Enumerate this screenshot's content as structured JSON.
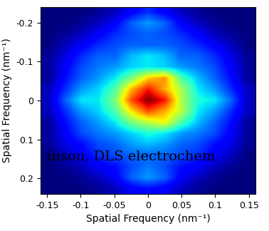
{
  "chart_data": {
    "type": "heatmap",
    "xlabel": "Spatial Frequency (nm⁻¹)",
    "ylabel": "Spatial Frequency (nm⁻¹)",
    "annotation": "inson, DLS electrochem",
    "xlim": [
      -0.16,
      0.16
    ],
    "ylim": [
      0.24,
      -0.24
    ],
    "xticks": [
      -0.15,
      -0.1,
      -0.05,
      0,
      0.05,
      0.1,
      0.15
    ],
    "yticks": [
      -0.2,
      -0.1,
      0,
      0.1,
      0.2
    ],
    "color": "jet",
    "cells": [
      [
        0.1,
        0.1,
        0.1,
        0.12,
        0.15,
        0.2,
        0.25,
        0.2,
        0.15,
        0.12,
        0.1,
        0.1,
        0.1
      ],
      [
        0.1,
        0.1,
        0.12,
        0.15,
        0.2,
        0.3,
        0.35,
        0.3,
        0.2,
        0.15,
        0.12,
        0.1,
        0.1
      ],
      [
        0.1,
        0.12,
        0.15,
        0.2,
        0.25,
        0.28,
        0.3,
        0.28,
        0.25,
        0.2,
        0.15,
        0.12,
        0.1
      ],
      [
        0.1,
        0.15,
        0.2,
        0.25,
        0.28,
        0.3,
        0.3,
        0.3,
        0.28,
        0.25,
        0.2,
        0.15,
        0.1
      ],
      [
        0.12,
        0.18,
        0.25,
        0.3,
        0.3,
        0.38,
        0.42,
        0.38,
        0.3,
        0.3,
        0.25,
        0.18,
        0.12
      ],
      [
        0.12,
        0.2,
        0.28,
        0.32,
        0.35,
        0.4,
        0.42,
        0.4,
        0.35,
        0.32,
        0.28,
        0.2,
        0.12
      ],
      [
        0.12,
        0.22,
        0.3,
        0.35,
        0.42,
        0.55,
        0.72,
        0.78,
        0.5,
        0.38,
        0.3,
        0.22,
        0.12
      ],
      [
        0.15,
        0.25,
        0.35,
        0.4,
        0.5,
        0.75,
        0.9,
        0.75,
        0.6,
        0.42,
        0.35,
        0.25,
        0.15
      ],
      [
        0.15,
        0.3,
        0.42,
        0.42,
        0.55,
        0.85,
        1.0,
        0.9,
        0.6,
        0.45,
        0.42,
        0.3,
        0.15
      ],
      [
        0.15,
        0.25,
        0.35,
        0.4,
        0.5,
        0.7,
        0.85,
        0.75,
        0.62,
        0.42,
        0.35,
        0.25,
        0.15
      ],
      [
        0.12,
        0.22,
        0.3,
        0.35,
        0.42,
        0.55,
        0.62,
        0.68,
        0.5,
        0.38,
        0.3,
        0.22,
        0.12
      ],
      [
        0.12,
        0.2,
        0.28,
        0.32,
        0.35,
        0.4,
        0.45,
        0.42,
        0.35,
        0.32,
        0.28,
        0.2,
        0.12
      ],
      [
        0.12,
        0.18,
        0.22,
        0.28,
        0.3,
        0.35,
        0.38,
        0.35,
        0.3,
        0.28,
        0.22,
        0.18,
        0.12
      ],
      [
        0.1,
        0.15,
        0.2,
        0.25,
        0.28,
        0.3,
        0.3,
        0.3,
        0.28,
        0.25,
        0.2,
        0.15,
        0.1
      ],
      [
        0.1,
        0.12,
        0.15,
        0.2,
        0.22,
        0.28,
        0.32,
        0.28,
        0.22,
        0.2,
        0.15,
        0.12,
        0.1
      ],
      [
        0.1,
        0.1,
        0.12,
        0.15,
        0.2,
        0.3,
        0.35,
        0.3,
        0.2,
        0.15,
        0.12,
        0.1,
        0.1
      ],
      [
        0.1,
        0.1,
        0.1,
        0.12,
        0.15,
        0.2,
        0.22,
        0.2,
        0.15,
        0.12,
        0.1,
        0.1,
        0.1
      ]
    ]
  }
}
